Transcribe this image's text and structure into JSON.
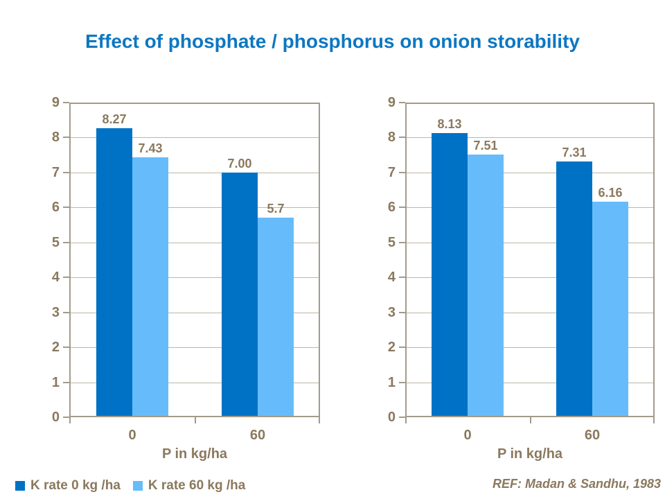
{
  "title": "Effect of phosphate / phosphorus on onion storability",
  "reference": "REF: Madan & Sandhu, 1983",
  "colors": {
    "title_blue": "#0c77c2",
    "series1_dark_blue": "#0072c5",
    "series2_light_blue": "#66bcfa",
    "axis_text_tan": "#8a795d",
    "gridline": "#bdb4a8",
    "plot_border": "#a39a8b",
    "background": "#ffffff"
  },
  "legend": {
    "items": [
      {
        "label": "K rate 0 kg /ha",
        "color": "#0072c5"
      },
      {
        "label": "K rate 60 kg /ha",
        "color": "#66bcfa"
      }
    ]
  },
  "chart_data": [
    {
      "type": "bar",
      "title": "",
      "categories": [
        "0",
        "60"
      ],
      "series": [
        {
          "name": "K rate 0 kg /ha",
          "color": "#0072c5",
          "values": [
            8.27,
            7.0
          ],
          "labels": [
            "8.27",
            "7.00"
          ]
        },
        {
          "name": "K rate 60 kg /ha",
          "color": "#66bcfa",
          "values": [
            7.43,
            5.7
          ],
          "labels": [
            "7.43",
            "5.7"
          ]
        }
      ],
      "xlabel": "P in kg/ha",
      "ylabel": "",
      "ylim": [
        0,
        9
      ],
      "ytick_step": 1,
      "yticks": [
        0,
        1,
        2,
        3,
        4,
        5,
        6,
        7,
        8,
        9
      ],
      "grid": true,
      "legend_position": "bottom-left"
    },
    {
      "type": "bar",
      "title": "",
      "categories": [
        "0",
        "60"
      ],
      "series": [
        {
          "name": "K rate 0 kg /ha",
          "color": "#0072c5",
          "values": [
            8.13,
            7.31
          ],
          "labels": [
            "8.13",
            "7.31"
          ]
        },
        {
          "name": "K rate 60 kg /ha",
          "color": "#66bcfa",
          "values": [
            7.51,
            6.16
          ],
          "labels": [
            "7.51",
            "6.16"
          ]
        }
      ],
      "xlabel": "P in kg/ha",
      "ylabel": "",
      "ylim": [
        0,
        9
      ],
      "ytick_step": 1,
      "yticks": [
        0,
        1,
        2,
        3,
        4,
        5,
        6,
        7,
        8,
        9
      ],
      "grid": true,
      "legend_position": "none"
    }
  ]
}
